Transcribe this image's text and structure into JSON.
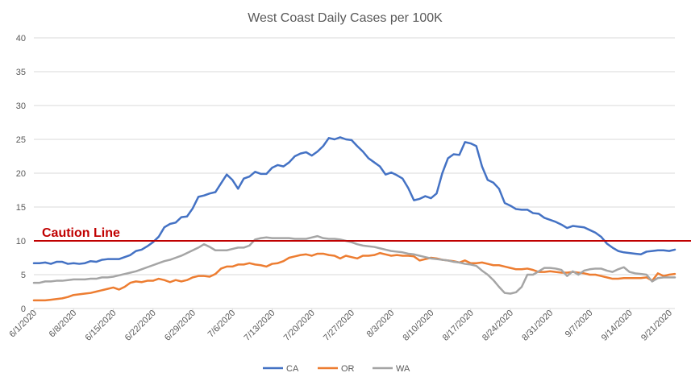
{
  "chart_data": {
    "type": "line",
    "title": "West Coast Daily Cases per 100K",
    "xlabel": "",
    "ylabel": "",
    "ylim": [
      0,
      40
    ],
    "yticks": [
      0,
      5,
      10,
      15,
      20,
      25,
      30,
      35,
      40
    ],
    "grid": true,
    "legend_position": "bottom",
    "x": [
      "6/1/2020",
      "6/2/2020",
      "6/3/2020",
      "6/4/2020",
      "6/5/2020",
      "6/6/2020",
      "6/7/2020",
      "6/8/2020",
      "6/9/2020",
      "6/10/2020",
      "6/11/2020",
      "6/12/2020",
      "6/13/2020",
      "6/14/2020",
      "6/15/2020",
      "6/16/2020",
      "6/17/2020",
      "6/18/2020",
      "6/19/2020",
      "6/20/2020",
      "6/21/2020",
      "6/22/2020",
      "6/23/2020",
      "6/24/2020",
      "6/25/2020",
      "6/26/2020",
      "6/27/2020",
      "6/28/2020",
      "6/29/2020",
      "6/30/2020",
      "7/1/2020",
      "7/2/2020",
      "7/3/2020",
      "7/4/2020",
      "7/5/2020",
      "7/6/2020",
      "7/7/2020",
      "7/8/2020",
      "7/9/2020",
      "7/10/2020",
      "7/11/2020",
      "7/12/2020",
      "7/13/2020",
      "7/14/2020",
      "7/15/2020",
      "7/16/2020",
      "7/17/2020",
      "7/18/2020",
      "7/19/2020",
      "7/20/2020",
      "7/21/2020",
      "7/22/2020",
      "7/23/2020",
      "7/24/2020",
      "7/25/2020",
      "7/26/2020",
      "7/27/2020",
      "7/28/2020",
      "7/29/2020",
      "7/30/2020",
      "7/31/2020",
      "8/1/2020",
      "8/2/2020",
      "8/3/2020",
      "8/4/2020",
      "8/5/2020",
      "8/6/2020",
      "8/7/2020",
      "8/8/2020",
      "8/9/2020",
      "8/10/2020",
      "8/11/2020",
      "8/12/2020",
      "8/13/2020",
      "8/14/2020",
      "8/15/2020",
      "8/16/2020",
      "8/17/2020",
      "8/18/2020",
      "8/19/2020",
      "8/20/2020",
      "8/21/2020",
      "8/22/2020",
      "8/23/2020",
      "8/24/2020",
      "8/25/2020",
      "8/26/2020",
      "8/27/2020",
      "8/28/2020",
      "8/29/2020",
      "8/30/2020",
      "8/31/2020",
      "9/1/2020",
      "9/2/2020",
      "9/3/2020",
      "9/4/2020",
      "9/5/2020",
      "9/6/2020",
      "9/7/2020",
      "9/8/2020",
      "9/9/2020",
      "9/10/2020",
      "9/11/2020",
      "9/12/2020",
      "9/13/2020",
      "9/14/2020",
      "9/15/2020",
      "9/16/2020",
      "9/17/2020",
      "9/18/2020",
      "9/19/2020",
      "9/20/2020",
      "9/21/2020",
      "9/22/2020"
    ],
    "x_tick_labels": [
      "6/1/2020",
      "6/8/2020",
      "6/15/2020",
      "6/22/2020",
      "6/29/2020",
      "7/6/2020",
      "7/13/2020",
      "7/20/2020",
      "7/27/2020",
      "8/3/2020",
      "8/10/2020",
      "8/17/2020",
      "8/24/2020",
      "8/31/2020",
      "9/7/2020",
      "9/14/2020",
      "9/21/2020"
    ],
    "series": [
      {
        "name": "CA",
        "color": "#4472c4",
        "values": [
          6.7,
          6.7,
          6.8,
          6.6,
          6.9,
          6.9,
          6.6,
          6.7,
          6.6,
          6.7,
          7.0,
          6.9,
          7.2,
          7.3,
          7.3,
          7.3,
          7.6,
          7.9,
          8.5,
          8.7,
          9.2,
          9.8,
          10.6,
          12.0,
          12.5,
          12.7,
          13.5,
          13.6,
          14.8,
          16.5,
          16.7,
          17.0,
          17.2,
          18.5,
          19.8,
          19.0,
          17.7,
          19.2,
          19.5,
          20.2,
          19.9,
          19.9,
          20.8,
          21.2,
          21.0,
          21.6,
          22.5,
          22.9,
          23.1,
          22.6,
          23.2,
          24.0,
          25.2,
          25.0,
          25.3,
          25.0,
          24.9,
          24.0,
          23.2,
          22.2,
          21.6,
          21.0,
          19.8,
          20.1,
          19.7,
          19.2,
          17.8,
          16.0,
          16.2,
          16.6,
          16.3,
          17.0,
          20.0,
          22.2,
          22.8,
          22.7,
          24.6,
          24.4,
          24.0,
          21.0,
          19.0,
          18.6,
          17.7,
          15.6,
          15.2,
          14.7,
          14.6,
          14.6,
          14.1,
          14.0,
          13.4,
          13.1,
          12.8,
          12.4,
          11.9,
          12.2,
          12.1,
          12.0,
          11.6,
          11.2,
          10.6,
          9.6,
          9.0,
          8.5,
          8.3,
          8.2,
          8.1,
          8.0,
          8.4,
          8.5,
          8.6,
          8.6,
          8.5,
          8.7
        ]
      },
      {
        "name": "OR",
        "color": "#ed7d31",
        "values": [
          1.2,
          1.2,
          1.2,
          1.3,
          1.4,
          1.5,
          1.7,
          2.0,
          2.1,
          2.2,
          2.3,
          2.5,
          2.7,
          2.9,
          3.1,
          2.8,
          3.2,
          3.8,
          4.0,
          3.9,
          4.1,
          4.1,
          4.4,
          4.2,
          3.9,
          4.2,
          4.0,
          4.2,
          4.6,
          4.8,
          4.8,
          4.7,
          5.1,
          5.9,
          6.2,
          6.2,
          6.5,
          6.5,
          6.7,
          6.5,
          6.4,
          6.2,
          6.6,
          6.7,
          7.0,
          7.5,
          7.7,
          7.9,
          8.0,
          7.8,
          8.1,
          8.1,
          7.9,
          7.8,
          7.4,
          7.8,
          7.6,
          7.4,
          7.8,
          7.8,
          7.9,
          8.2,
          8.0,
          7.8,
          7.9,
          7.8,
          7.8,
          7.7,
          7.1,
          7.3,
          7.5,
          7.4,
          7.2,
          7.1,
          7.0,
          6.8,
          7.1,
          6.7,
          6.7,
          6.8,
          6.6,
          6.4,
          6.4,
          6.2,
          6.0,
          5.8,
          5.8,
          5.9,
          5.7,
          5.4,
          5.4,
          5.5,
          5.4,
          5.3,
          5.3,
          5.4,
          5.3,
          5.2,
          5.0,
          5.0,
          4.8,
          4.6,
          4.4,
          4.4,
          4.5,
          4.5,
          4.5,
          4.5,
          4.6,
          4.1,
          5.2,
          4.8,
          5.0,
          5.1
        ]
      },
      {
        "name": "WA",
        "color": "#a5a5a5",
        "values": [
          3.8,
          3.8,
          4.0,
          4.0,
          4.1,
          4.1,
          4.2,
          4.3,
          4.3,
          4.3,
          4.4,
          4.4,
          4.6,
          4.6,
          4.7,
          4.9,
          5.1,
          5.3,
          5.5,
          5.8,
          6.1,
          6.4,
          6.7,
          7.0,
          7.2,
          7.5,
          7.8,
          8.2,
          8.6,
          9.0,
          9.5,
          9.1,
          8.6,
          8.6,
          8.6,
          8.8,
          9.0,
          9.0,
          9.3,
          10.2,
          10.4,
          10.5,
          10.4,
          10.4,
          10.4,
          10.4,
          10.3,
          10.3,
          10.3,
          10.5,
          10.7,
          10.4,
          10.3,
          10.3,
          10.2,
          10.0,
          9.8,
          9.5,
          9.3,
          9.2,
          9.1,
          8.9,
          8.7,
          8.5,
          8.4,
          8.3,
          8.1,
          8.0,
          7.8,
          7.6,
          7.4,
          7.3,
          7.2,
          7.1,
          6.9,
          6.8,
          6.6,
          6.5,
          6.3,
          5.6,
          5.0,
          4.2,
          3.2,
          2.3,
          2.2,
          2.4,
          3.2,
          5.0,
          5.0,
          5.5,
          6.0,
          6.0,
          5.9,
          5.7,
          4.8,
          5.5,
          5.0,
          5.6,
          5.8,
          5.9,
          5.9,
          5.6,
          5.4,
          5.8,
          6.1,
          5.4,
          5.2,
          5.1,
          5.0,
          4.0,
          4.5,
          4.6,
          4.6,
          4.6
        ]
      }
    ],
    "annotations": [
      {
        "label": "Caution Line",
        "y": 10,
        "color": "#c00000"
      }
    ]
  }
}
